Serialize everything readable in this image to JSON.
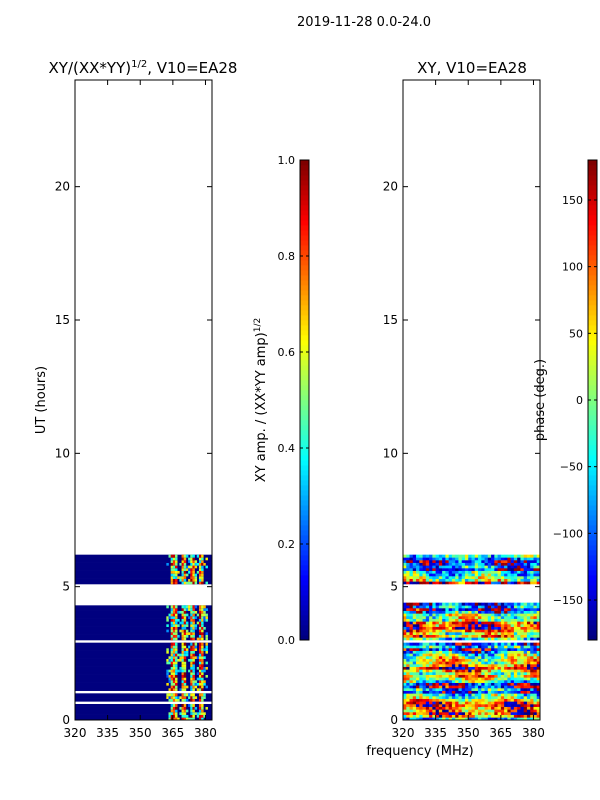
{
  "suptitle": "2019-11-28 0.0-24.0",
  "colors": {
    "jet": [
      "#00007f",
      "#0000ff",
      "#007fff",
      "#00ffff",
      "#7fff7f",
      "#ffff00",
      "#ff7f00",
      "#ff0000",
      "#7f0000"
    ],
    "background": "#ffffff",
    "axis": "#000000"
  },
  "chart_data": [
    {
      "type": "heatmap",
      "title_prefix": "XY/(XX*YY)",
      "title_superscript": "1/2",
      "title_suffix": ", V10=EA28",
      "ylabel": "UT (hours)",
      "xlabel": "",
      "xlim": [
        320,
        383
      ],
      "ylim": [
        0,
        24
      ],
      "xticks": [
        320,
        335,
        350,
        365,
        380
      ],
      "yticks": [
        0,
        5,
        10,
        15,
        20
      ],
      "data_ut_range": [
        0,
        6.2
      ],
      "gaps_ut": [
        [
          4.3,
          5.0
        ],
        [
          0.6,
          0.7
        ],
        [
          0.95,
          1.0
        ],
        [
          2.9,
          3.0
        ],
        [
          6.0,
          6.05
        ]
      ],
      "dominant_value": 0.0,
      "active_band_mhz": [
        362,
        381
      ],
      "colorbar": {
        "label_prefix": "XY amp. / (XX*YY amp)",
        "label_superscript": "1/2",
        "range": [
          0.0,
          1.0
        ],
        "ticks": [
          "0.0",
          "0.2",
          "0.4",
          "0.6",
          "0.8",
          "1.0"
        ]
      }
    },
    {
      "type": "heatmap",
      "title": "XY, V10=EA28",
      "ylabel": "",
      "xlabel": "frequency (MHz)",
      "xlim": [
        320,
        383
      ],
      "ylim": [
        0,
        24
      ],
      "xticks": [
        320,
        335,
        350,
        365,
        380
      ],
      "yticks": [
        0,
        5,
        10,
        15,
        20
      ],
      "data_ut_range": [
        0,
        6.2
      ],
      "gaps_ut": [
        [
          4.35,
          5.0
        ],
        [
          0.65,
          0.7
        ],
        [
          2.9,
          2.95
        ],
        [
          6.0,
          6.05
        ]
      ],
      "value_range": [
        -180,
        180
      ],
      "colorbar": {
        "label": "phase (deg.)",
        "range": [
          -180,
          180
        ],
        "ticks": [
          "−150",
          "−100",
          "−50",
          "0",
          "50",
          "100",
          "150"
        ]
      }
    }
  ]
}
